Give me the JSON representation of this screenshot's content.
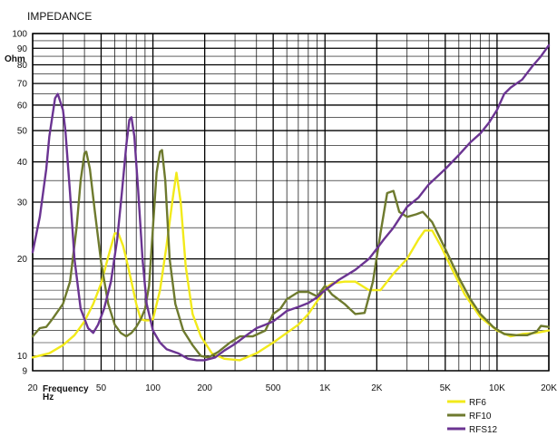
{
  "chart_data": {
    "type": "line",
    "title": "IMPEDANCE",
    "ylabel": "Ohm",
    "xlabel": "Frequency",
    "xunit": "Hz",
    "xscale": "log",
    "yscale": "log",
    "xlim": [
      20,
      20000
    ],
    "ylim": [
      9,
      100
    ],
    "grid": true,
    "legend_position": "bottom-right",
    "x_ticks": [
      {
        "value": 20,
        "label": "20"
      },
      {
        "value": 50,
        "label": "50"
      },
      {
        "value": 100,
        "label": "100"
      },
      {
        "value": 200,
        "label": "200"
      },
      {
        "value": 500,
        "label": "500"
      },
      {
        "value": 1000,
        "label": "1K"
      },
      {
        "value": 2000,
        "label": "2K"
      },
      {
        "value": 5000,
        "label": "5K"
      },
      {
        "value": 10000,
        "label": "10K"
      },
      {
        "value": 20000,
        "label": "20K"
      }
    ],
    "y_ticks": [
      {
        "value": 9,
        "label": "9"
      },
      {
        "value": 10,
        "label": "10"
      },
      {
        "value": 20,
        "label": "20"
      },
      {
        "value": 30,
        "label": "30"
      },
      {
        "value": 40,
        "label": "40"
      },
      {
        "value": 50,
        "label": "50"
      },
      {
        "value": 60,
        "label": "60"
      },
      {
        "value": 70,
        "label": "70"
      },
      {
        "value": 80,
        "label": "80"
      },
      {
        "value": 90,
        "label": "90"
      },
      {
        "value": 100,
        "label": "100"
      }
    ],
    "series": [
      {
        "name": "RF6",
        "color": "#f2ea1a",
        "points": [
          [
            20,
            9.9
          ],
          [
            25,
            10.2
          ],
          [
            30,
            10.8
          ],
          [
            35,
            11.6
          ],
          [
            40,
            12.8
          ],
          [
            45,
            14.5
          ],
          [
            50,
            16.8
          ],
          [
            55,
            20.3
          ],
          [
            60,
            24.0
          ],
          [
            63,
            24.0
          ],
          [
            67,
            22.0
          ],
          [
            70,
            20.0
          ],
          [
            75,
            17.0
          ],
          [
            80,
            14.5
          ],
          [
            85,
            13.0
          ],
          [
            90,
            12.9
          ],
          [
            95,
            12.9
          ],
          [
            100,
            13.0
          ],
          [
            110,
            16.0
          ],
          [
            120,
            22.0
          ],
          [
            130,
            30.5
          ],
          [
            137,
            37.0
          ],
          [
            145,
            30.0
          ],
          [
            155,
            19.0
          ],
          [
            170,
            13.5
          ],
          [
            190,
            11.5
          ],
          [
            220,
            10.2
          ],
          [
            260,
            9.8
          ],
          [
            320,
            9.7
          ],
          [
            400,
            10.2
          ],
          [
            500,
            11.0
          ],
          [
            600,
            11.8
          ],
          [
            700,
            12.5
          ],
          [
            800,
            13.5
          ],
          [
            900,
            14.8
          ],
          [
            1000,
            16.2
          ],
          [
            1100,
            16.8
          ],
          [
            1300,
            17.0
          ],
          [
            1500,
            17.0
          ],
          [
            1800,
            16.0
          ],
          [
            2100,
            16.0
          ],
          [
            2500,
            18.0
          ],
          [
            3000,
            20.0
          ],
          [
            3500,
            23.0
          ],
          [
            3800,
            24.5
          ],
          [
            4200,
            24.5
          ],
          [
            4700,
            22.0
          ],
          [
            5500,
            18.5
          ],
          [
            6500,
            15.5
          ],
          [
            8000,
            13.2
          ],
          [
            10000,
            12.0
          ],
          [
            12000,
            11.5
          ],
          [
            14000,
            11.7
          ],
          [
            17000,
            11.8
          ],
          [
            20000,
            12.0
          ]
        ]
      },
      {
        "name": "RF10",
        "color": "#6e7a2e",
        "points": [
          [
            20,
            11.5
          ],
          [
            22,
            12.2
          ],
          [
            24,
            12.3
          ],
          [
            26,
            13.0
          ],
          [
            30,
            14.5
          ],
          [
            33,
            17.0
          ],
          [
            36,
            25.0
          ],
          [
            38,
            35.0
          ],
          [
            40,
            42.5
          ],
          [
            41,
            43.0
          ],
          [
            43,
            38.0
          ],
          [
            46,
            28.0
          ],
          [
            50,
            19.5
          ],
          [
            55,
            14.5
          ],
          [
            60,
            12.5
          ],
          [
            65,
            11.8
          ],
          [
            70,
            11.5
          ],
          [
            75,
            11.8
          ],
          [
            80,
            12.3
          ],
          [
            85,
            13.0
          ],
          [
            90,
            14.0
          ],
          [
            95,
            16.5
          ],
          [
            100,
            25.0
          ],
          [
            105,
            37.0
          ],
          [
            110,
            43.0
          ],
          [
            113,
            43.5
          ],
          [
            118,
            35.0
          ],
          [
            125,
            20.0
          ],
          [
            135,
            14.5
          ],
          [
            150,
            12.0
          ],
          [
            170,
            10.8
          ],
          [
            190,
            10.0
          ],
          [
            210,
            9.9
          ],
          [
            240,
            10.3
          ],
          [
            280,
            11.0
          ],
          [
            320,
            11.5
          ],
          [
            380,
            11.5
          ],
          [
            450,
            12.0
          ],
          [
            500,
            13.5
          ],
          [
            550,
            14.0
          ],
          [
            600,
            15.0
          ],
          [
            700,
            15.8
          ],
          [
            800,
            15.8
          ],
          [
            900,
            15.3
          ],
          [
            1000,
            16.5
          ],
          [
            1100,
            15.5
          ],
          [
            1300,
            14.5
          ],
          [
            1500,
            13.5
          ],
          [
            1700,
            13.6
          ],
          [
            1900,
            17.0
          ],
          [
            2100,
            24.0
          ],
          [
            2300,
            32.0
          ],
          [
            2500,
            32.5
          ],
          [
            2700,
            28.0
          ],
          [
            3000,
            27.0
          ],
          [
            3400,
            27.5
          ],
          [
            3700,
            28.0
          ],
          [
            4200,
            26.0
          ],
          [
            5000,
            21.5
          ],
          [
            6000,
            17.5
          ],
          [
            7000,
            15.0
          ],
          [
            8000,
            13.5
          ],
          [
            9500,
            12.3
          ],
          [
            11000,
            11.7
          ],
          [
            13000,
            11.6
          ],
          [
            15000,
            11.6
          ],
          [
            17000,
            11.9
          ],
          [
            18000,
            12.4
          ],
          [
            20000,
            12.3
          ]
        ]
      },
      {
        "name": "RFS12",
        "color": "#6b3492",
        "points": [
          [
            20,
            21.0
          ],
          [
            22,
            27.0
          ],
          [
            24,
            38.0
          ],
          [
            25,
            48.0
          ],
          [
            27,
            63.0
          ],
          [
            28,
            65.0
          ],
          [
            30,
            58.0
          ],
          [
            31,
            50.0
          ],
          [
            33,
            32.0
          ],
          [
            35,
            20.0
          ],
          [
            38,
            14.0
          ],
          [
            42,
            12.2
          ],
          [
            45,
            11.8
          ],
          [
            48,
            12.5
          ],
          [
            52,
            14.0
          ],
          [
            57,
            17.0
          ],
          [
            62,
            23.0
          ],
          [
            66,
            32.0
          ],
          [
            70,
            45.0
          ],
          [
            73,
            54.0
          ],
          [
            75,
            55.0
          ],
          [
            78,
            48.0
          ],
          [
            82,
            33.0
          ],
          [
            87,
            20.0
          ],
          [
            92,
            14.5
          ],
          [
            100,
            12.0
          ],
          [
            110,
            11.0
          ],
          [
            120,
            10.5
          ],
          [
            140,
            10.2
          ],
          [
            160,
            9.8
          ],
          [
            180,
            9.7
          ],
          [
            200,
            9.7
          ],
          [
            230,
            9.9
          ],
          [
            260,
            10.4
          ],
          [
            300,
            10.9
          ],
          [
            350,
            11.6
          ],
          [
            400,
            12.2
          ],
          [
            450,
            12.5
          ],
          [
            500,
            12.8
          ],
          [
            550,
            13.3
          ],
          [
            600,
            13.8
          ],
          [
            700,
            14.2
          ],
          [
            800,
            14.6
          ],
          [
            900,
            15.2
          ],
          [
            1000,
            16.0
          ],
          [
            1200,
            17.2
          ],
          [
            1500,
            18.5
          ],
          [
            1800,
            20.0
          ],
          [
            2000,
            21.5
          ],
          [
            2200,
            23.0
          ],
          [
            2500,
            25.0
          ],
          [
            3000,
            29.0
          ],
          [
            3500,
            31.0
          ],
          [
            4000,
            34.0
          ],
          [
            5000,
            38.0
          ],
          [
            6000,
            42.0
          ],
          [
            7000,
            46.0
          ],
          [
            8000,
            49.0
          ],
          [
            9000,
            53.0
          ],
          [
            10000,
            58.0
          ],
          [
            11000,
            65.0
          ],
          [
            12000,
            68.0
          ],
          [
            14000,
            72.0
          ],
          [
            16000,
            79.0
          ],
          [
            18000,
            85.0
          ],
          [
            20000,
            92.0
          ]
        ]
      }
    ]
  }
}
